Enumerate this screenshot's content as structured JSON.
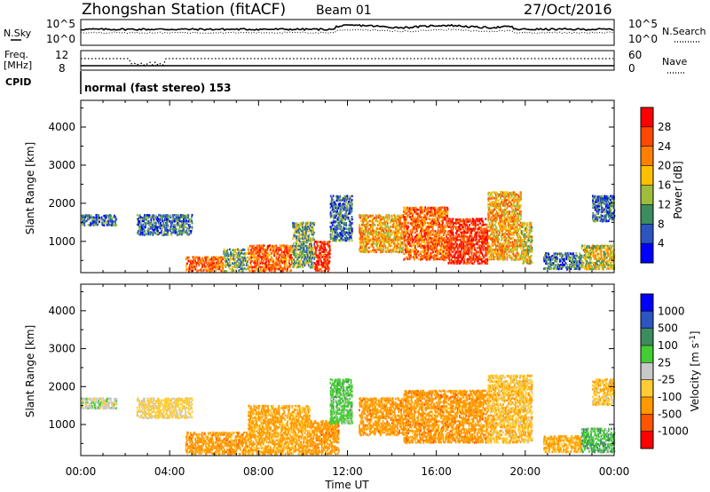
{
  "header": {
    "station": "Zhongshan Station (fitACF)",
    "beam": "Beam 01",
    "date": "27/Oct/2016"
  },
  "top_strip": {
    "left_label": "N.Sky",
    "left_ticks": [
      "10^5",
      "10^0"
    ],
    "right_ticks": [
      "10^5",
      "10^0"
    ],
    "right_label": "N.Search"
  },
  "freq_strip": {
    "left_label_1": "Freq.",
    "left_label_2": "[MHz]",
    "left_ticks": [
      "12",
      "8"
    ],
    "right_ticks": [
      "60",
      "0"
    ],
    "right_label": "Nave",
    "cpid_label": "CPID",
    "cpid_text": "normal (fast stereo) 153"
  },
  "chart_data": [
    {
      "type": "heatmap",
      "name": "power",
      "ylabel": "Slant Range [km]",
      "xlabel": "",
      "x_ticks": [
        "00:00",
        "04:00",
        "08:00",
        "12:00",
        "16:00",
        "20:00",
        "00:00"
      ],
      "y_ticks": [
        "1000",
        "2000",
        "3000",
        "4000"
      ],
      "colorbar_label": "Power [dB]",
      "colorbar_ticks": [
        "4",
        "8",
        "12",
        "16",
        "20",
        "24",
        "28"
      ],
      "colorbar_colors": [
        "#0000ff",
        "#2c55c0",
        "#3d8c5e",
        "#9ebd3c",
        "#ffc000",
        "#ff8000",
        "#ff4800",
        "#ff0000"
      ],
      "scatter_regions": [
        {
          "t_start": 0.0,
          "t_end": 1.6,
          "r_low": 1400,
          "r_high": 1700,
          "value": 8
        },
        {
          "t_start": 2.5,
          "t_end": 5.0,
          "r_low": 1150,
          "r_high": 1700,
          "value": 8
        },
        {
          "t_start": 4.7,
          "t_end": 6.4,
          "r_low": 200,
          "r_high": 600,
          "value": 24
        },
        {
          "t_start": 6.4,
          "t_end": 7.5,
          "r_low": 200,
          "r_high": 800,
          "value": 12
        },
        {
          "t_start": 7.5,
          "t_end": 9.5,
          "r_low": 200,
          "r_high": 900,
          "value": 24
        },
        {
          "t_start": 9.5,
          "t_end": 10.5,
          "r_low": 300,
          "r_high": 1500,
          "value": 12
        },
        {
          "t_start": 10.5,
          "t_end": 11.2,
          "r_low": 200,
          "r_high": 1000,
          "value": 28
        },
        {
          "t_start": 11.2,
          "t_end": 12.2,
          "r_low": 1000,
          "r_high": 2200,
          "value": 8
        },
        {
          "t_start": 12.5,
          "t_end": 14.5,
          "r_low": 700,
          "r_high": 1700,
          "value": 20
        },
        {
          "t_start": 14.5,
          "t_end": 16.5,
          "r_low": 500,
          "r_high": 1900,
          "value": 24
        },
        {
          "t_start": 16.5,
          "t_end": 18.3,
          "r_low": 400,
          "r_high": 1600,
          "value": 28
        },
        {
          "t_start": 18.3,
          "t_end": 19.8,
          "r_low": 500,
          "r_high": 2300,
          "value": 20
        },
        {
          "t_start": 19.8,
          "t_end": 20.3,
          "r_low": 400,
          "r_high": 1500,
          "value": 16
        },
        {
          "t_start": 20.8,
          "t_end": 22.5,
          "r_low": 250,
          "r_high": 700,
          "value": 8
        },
        {
          "t_start": 22.5,
          "t_end": 24.0,
          "r_low": 250,
          "r_high": 900,
          "value": 16
        },
        {
          "t_start": 23.0,
          "t_end": 24.0,
          "r_low": 1500,
          "r_high": 2200,
          "value": 8
        }
      ]
    },
    {
      "type": "heatmap",
      "name": "velocity",
      "ylabel": "Slant Range [km]",
      "xlabel": "Time UT",
      "x_ticks": [
        "00:00",
        "04:00",
        "08:00",
        "12:00",
        "16:00",
        "20:00",
        "00:00"
      ],
      "y_ticks": [
        "1000",
        "2000",
        "3000",
        "4000"
      ],
      "colorbar_label": "Velocity [m s",
      "colorbar_unit_sup": "-1",
      "colorbar_unit_close": "]",
      "colorbar_ticks": [
        "-1000",
        "-500",
        "-100",
        "-25",
        "25",
        "100",
        "500",
        "1000"
      ],
      "colorbar_colors": [
        "#ff0000",
        "#ff5500",
        "#ff9900",
        "#ffcc33",
        "#c8c8c8",
        "#44cc33",
        "#3d8c5e",
        "#2c55c0",
        "#0000ff"
      ],
      "scatter_regions": [
        {
          "t_start": 0.0,
          "t_end": 1.6,
          "r_low": 1400,
          "r_high": 1700,
          "value": 0
        },
        {
          "t_start": 2.5,
          "t_end": 5.0,
          "r_low": 1150,
          "r_high": 1700,
          "value": -50
        },
        {
          "t_start": 4.7,
          "t_end": 7.5,
          "r_low": 200,
          "r_high": 800,
          "value": -300
        },
        {
          "t_start": 7.5,
          "t_end": 10.3,
          "r_low": 200,
          "r_high": 1500,
          "value": -150
        },
        {
          "t_start": 10.3,
          "t_end": 11.6,
          "r_low": 200,
          "r_high": 1100,
          "value": -300
        },
        {
          "t_start": 11.2,
          "t_end": 12.2,
          "r_low": 1000,
          "r_high": 2200,
          "value": 60
        },
        {
          "t_start": 12.5,
          "t_end": 14.5,
          "r_low": 700,
          "r_high": 1700,
          "value": -300
        },
        {
          "t_start": 14.5,
          "t_end": 18.3,
          "r_low": 500,
          "r_high": 1900,
          "value": -300
        },
        {
          "t_start": 18.3,
          "t_end": 20.3,
          "r_low": 500,
          "r_high": 2300,
          "value": -80
        },
        {
          "t_start": 20.8,
          "t_end": 22.5,
          "r_low": 250,
          "r_high": 700,
          "value": -120
        },
        {
          "t_start": 22.5,
          "t_end": 24.0,
          "r_low": 250,
          "r_high": 900,
          "value": 80
        },
        {
          "t_start": 23.0,
          "t_end": 24.0,
          "r_low": 1500,
          "r_high": 2200,
          "value": -80
        }
      ]
    }
  ]
}
